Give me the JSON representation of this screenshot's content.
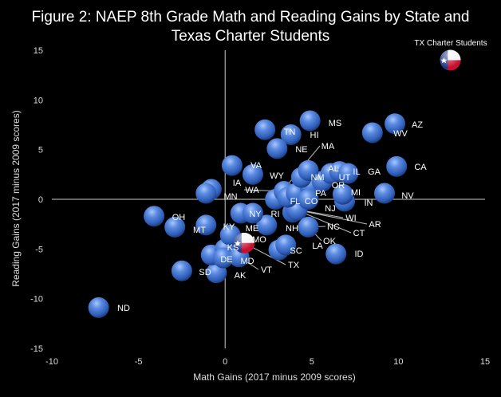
{
  "chart_data": {
    "type": "scatter",
    "title_line1": "Figure 2: NAEP 8th Grade Math and Reading Gains by State and",
    "title_line2": "Texas Charter Students",
    "xlabel": "Math Gains (2017 minus 2009 scores)",
    "ylabel": "Reading Gains (2017 minus 2009 scores)",
    "xlim": [
      -10,
      15
    ],
    "ylim": [
      -15,
      15
    ],
    "xticks": [
      -10,
      -5,
      0,
      5,
      10,
      15
    ],
    "yticks": [
      -15,
      -10,
      -5,
      0,
      5,
      10,
      15
    ],
    "bubble_color": "#4a78d0",
    "points": [
      {
        "label": "ND",
        "x": -7.3,
        "y": -10.9
      },
      {
        "label": "OH",
        "x": -4.1,
        "y": -1.7
      },
      {
        "label": "MT",
        "x": -2.9,
        "y": -2.8
      },
      {
        "label": "KY",
        "x": -1.1,
        "y": -2.6
      },
      {
        "label": "SD",
        "x": -2.5,
        "y": -7.2
      },
      {
        "label": "AK",
        "x": -0.5,
        "y": -7.4
      },
      {
        "label": "DE",
        "x": -0.8,
        "y": -5.6
      },
      {
        "label": "KS",
        "x": 0.0,
        "y": -5.0
      },
      {
        "label": "MD",
        "x": -0.1,
        "y": -5.9
      },
      {
        "label": "VT",
        "x": 0.8,
        "y": -5.8
      },
      {
        "label": "MO",
        "x": 0.3,
        "y": -3.6
      },
      {
        "label": "ME",
        "x": 2.4,
        "y": -2.6
      },
      {
        "label": "NY",
        "x": 0.9,
        "y": -1.4
      },
      {
        "label": "RI",
        "x": 1.6,
        "y": -1.4
      },
      {
        "label": "NH",
        "x": 3.9,
        "y": -1.3
      },
      {
        "label": "SC",
        "x": 3.1,
        "y": -5.1
      },
      {
        "label": "LA",
        "x": 3.5,
        "y": -4.6
      },
      {
        "label": "OK",
        "x": 3.95,
        "y": -1.2
      },
      {
        "label": "WI",
        "x": 4.05,
        "y": -1.0
      },
      {
        "label": "AR",
        "x": 4.1,
        "y": -1.05
      },
      {
        "label": "CT",
        "x": 4.15,
        "y": -1.1
      },
      {
        "label": "NC",
        "x": 4.8,
        "y": -2.8
      },
      {
        "label": "ID",
        "x": 6.4,
        "y": -5.5
      },
      {
        "label": "IN",
        "x": 6.9,
        "y": -0.2
      },
      {
        "label": "NV",
        "x": 9.2,
        "y": 0.6
      },
      {
        "label": "CA",
        "x": 9.9,
        "y": 3.3
      },
      {
        "label": "WV",
        "x": 8.5,
        "y": 6.7
      },
      {
        "label": "AZ",
        "x": 9.8,
        "y": 7.6
      },
      {
        "label": "MS",
        "x": 4.9,
        "y": 7.9
      },
      {
        "label": "HI",
        "x": 3.8,
        "y": 6.5
      },
      {
        "label": "TN",
        "x": 2.3,
        "y": 7.0
      },
      {
        "label": "NE",
        "x": 3.0,
        "y": 5.1
      },
      {
        "label": "MA",
        "x": 2.9,
        "y": 0.0
      },
      {
        "label": "VA",
        "x": 0.4,
        "y": 3.4
      },
      {
        "label": "WY",
        "x": 1.6,
        "y": 2.5
      },
      {
        "label": "WA",
        "x": 3.4,
        "y": 0.8
      },
      {
        "label": "IA",
        "x": -0.8,
        "y": 1.0
      },
      {
        "label": "MN",
        "x": -1.1,
        "y": 0.6
      },
      {
        "label": "FL",
        "x": 3.6,
        "y": 0.2
      },
      {
        "label": "CO",
        "x": 4.1,
        "y": 0.6
      },
      {
        "label": "PA",
        "x": 4.9,
        "y": 1.3
      },
      {
        "label": "NJ",
        "x": 4.8,
        "y": 0.0
      },
      {
        "label": "MI",
        "x": 6.8,
        "y": 0.5
      },
      {
        "label": "OR",
        "x": 5.6,
        "y": 1.8
      },
      {
        "label": "NM",
        "x": 4.4,
        "y": 2.2
      },
      {
        "label": "AL",
        "x": 4.8,
        "y": 2.9
      },
      {
        "label": "UT",
        "x": 6.1,
        "y": 2.6
      },
      {
        "label": "IL",
        "x": 6.6,
        "y": 2.8
      },
      {
        "label": "GA",
        "x": 7.1,
        "y": 2.6
      },
      {
        "label": "TX",
        "x": 1.1,
        "y": -4.4,
        "flag": true
      },
      {
        "label": "TX Charter Students",
        "x": 13.0,
        "y": 14.0,
        "flag": true
      }
    ]
  }
}
